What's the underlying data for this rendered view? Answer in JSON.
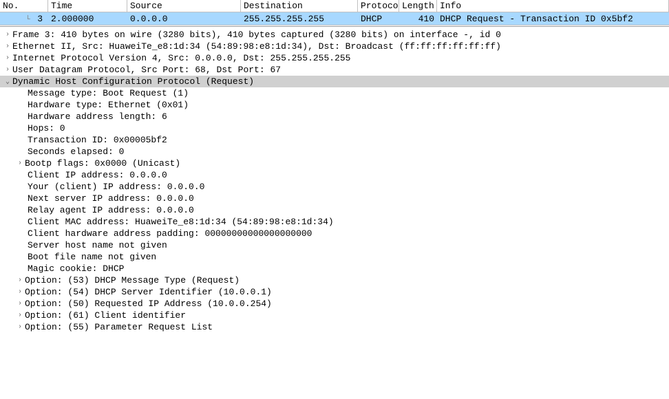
{
  "columns": {
    "no": "No.",
    "time": "Time",
    "source": "Source",
    "destination": "Destination",
    "protocol": "Protocol",
    "length": "Length",
    "info": "Info"
  },
  "packet": {
    "no": "3",
    "time": "2.000000",
    "source": "0.0.0.0",
    "destination": "255.255.255.255",
    "protocol": "DHCP",
    "length": "410",
    "info": "DHCP Request  - Transaction ID 0x5bf2"
  },
  "tree": {
    "frame": "Frame 3: 410 bytes on wire (3280 bits), 410 bytes captured (3280 bits) on interface -, id 0",
    "eth": "Ethernet II, Src: HuaweiTe_e8:1d:34 (54:89:98:e8:1d:34), Dst: Broadcast (ff:ff:ff:ff:ff:ff)",
    "ip": "Internet Protocol Version 4, Src: 0.0.0.0, Dst: 255.255.255.255",
    "udp": "User Datagram Protocol, Src Port: 68, Dst Port: 67",
    "dhcp": "Dynamic Host Configuration Protocol (Request)",
    "dhcp_fields": {
      "msgtype": "Message type: Boot Request (1)",
      "hwtype": "Hardware type: Ethernet (0x01)",
      "hwlen": "Hardware address length: 6",
      "hops": "Hops: 0",
      "xid": "Transaction ID: 0x00005bf2",
      "secs": "Seconds elapsed: 0",
      "flags": "Bootp flags: 0x0000 (Unicast)",
      "ciaddr": "Client IP address: 0.0.0.0",
      "yiaddr": "Your (client) IP address: 0.0.0.0",
      "siaddr": "Next server IP address: 0.0.0.0",
      "giaddr": "Relay agent IP address: 0.0.0.0",
      "chaddr": "Client MAC address: HuaweiTe_e8:1d:34 (54:89:98:e8:1d:34)",
      "padding": "Client hardware address padding: 00000000000000000000",
      "sname": "Server host name not given",
      "bootfile": "Boot file name not given",
      "cookie": "Magic cookie: DHCP",
      "opt53": "Option: (53) DHCP Message Type (Request)",
      "opt54": "Option: (54) DHCP Server Identifier (10.0.0.1)",
      "opt50": "Option: (50) Requested IP Address (10.0.0.254)",
      "opt61": "Option: (61) Client identifier",
      "opt55": "Option: (55) Parameter Request List"
    }
  },
  "glyphs": {
    "collapsed": "›",
    "expanded": "⌄",
    "branch": "└"
  }
}
